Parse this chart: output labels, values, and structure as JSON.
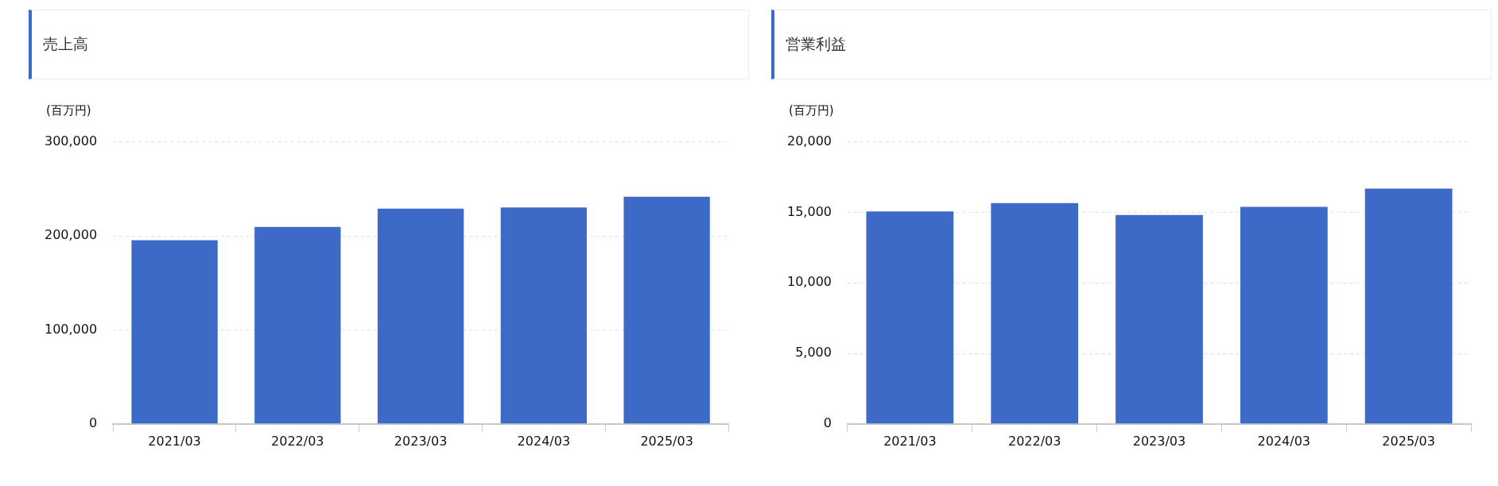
{
  "chart_data": [
    {
      "type": "bar",
      "title": "売上高",
      "ylabel": "(百万円)",
      "categories": [
        "2021/03",
        "2022/03",
        "2023/03",
        "2024/03",
        "2025/03"
      ],
      "values": [
        195400,
        209600,
        228900,
        230200,
        241700
      ],
      "color": "#3c6ac6",
      "ylim": [
        0,
        300000
      ],
      "yticks": [
        {
          "value": 0,
          "label": "0"
        },
        {
          "value": 100000,
          "label": "100,000"
        },
        {
          "value": 200000,
          "label": "200,000"
        },
        {
          "value": 300000,
          "label": "300,000"
        }
      ],
      "grid": "y"
    },
    {
      "type": "bar",
      "title": "営業利益",
      "ylabel": "(百万円)",
      "categories": [
        "2021/03",
        "2022/03",
        "2023/03",
        "2024/03",
        "2025/03"
      ],
      "values": [
        15070,
        15660,
        14810,
        15390,
        16680
      ],
      "color": "#3c6ac6",
      "ylim": [
        0,
        20000
      ],
      "yticks": [
        {
          "value": 0,
          "label": "0"
        },
        {
          "value": 5000,
          "label": "5,000"
        },
        {
          "value": 10000,
          "label": "10,000"
        },
        {
          "value": 15000,
          "label": "15,000"
        },
        {
          "value": 20000,
          "label": "20,000"
        }
      ],
      "grid": "y"
    }
  ]
}
